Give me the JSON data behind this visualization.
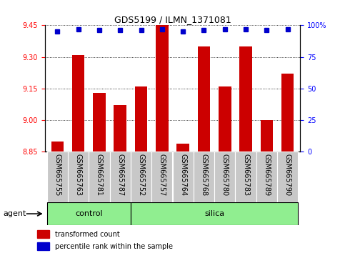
{
  "title": "GDS5199 / ILMN_1371081",
  "samples": [
    "GSM665755",
    "GSM665763",
    "GSM665781",
    "GSM665787",
    "GSM665752",
    "GSM665757",
    "GSM665764",
    "GSM665768",
    "GSM665780",
    "GSM665783",
    "GSM665789",
    "GSM665790"
  ],
  "red_values": [
    8.9,
    9.31,
    9.13,
    9.07,
    9.16,
    9.45,
    8.89,
    9.35,
    9.16,
    9.35,
    9.0,
    9.22
  ],
  "blue_values": [
    95,
    97,
    96,
    96,
    96,
    97,
    95,
    96,
    97,
    97,
    96,
    97
  ],
  "ymin": 8.85,
  "ymax": 9.45,
  "y_ticks": [
    8.85,
    9.0,
    9.15,
    9.3,
    9.45
  ],
  "y2_ticks": [
    0,
    25,
    50,
    75,
    100
  ],
  "control_count": 4,
  "silica_count": 8,
  "bar_color": "#cc0000",
  "dot_color": "#0000cc",
  "green_color": "#90ee90",
  "gray_color": "#c8c8c8",
  "agent_label": "agent",
  "control_label": "control",
  "silica_label": "silica",
  "legend_bar": "transformed count",
  "legend_dot": "percentile rank within the sample",
  "bar_width": 0.6,
  "title_fontsize": 9,
  "tick_fontsize": 7,
  "label_fontsize": 7,
  "legend_fontsize": 7
}
